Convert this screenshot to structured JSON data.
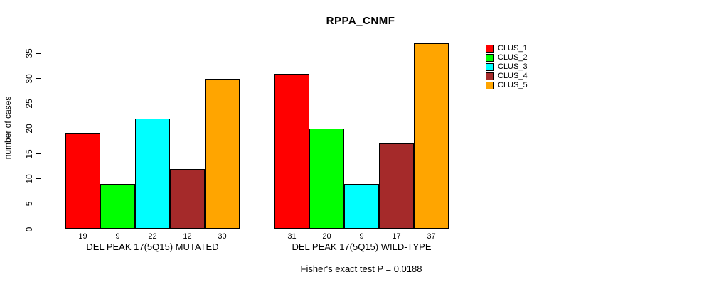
{
  "title": "RPPA_CNMF",
  "chart_data": {
    "type": "bar",
    "title": "RPPA_CNMF",
    "xlabel": "",
    "ylabel": "number of cases",
    "categories": [
      "DEL PEAK 17(5Q15) MUTATED",
      "DEL PEAK 17(5Q15) WILD-TYPE"
    ],
    "series": [
      {
        "name": "CLUS_1",
        "color": "#FF0000",
        "values": [
          19,
          31
        ]
      },
      {
        "name": "CLUS_2",
        "color": "#00FF00",
        "values": [
          9,
          20
        ]
      },
      {
        "name": "CLUS_3",
        "color": "#00FFFF",
        "values": [
          22,
          9
        ]
      },
      {
        "name": "CLUS_4",
        "color": "#A52A2A",
        "values": [
          12,
          17
        ]
      },
      {
        "name": "CLUS_5",
        "color": "#FFA500",
        "values": [
          30,
          37
        ]
      }
    ],
    "yticks": [
      0,
      5,
      10,
      15,
      20,
      25,
      30,
      35
    ],
    "ylim": [
      0,
      37
    ],
    "grid": false,
    "legend_position": "top-right",
    "bar_value_labels_shown": true,
    "annotation": "Fisher's exact test P = 0.0188",
    "axis_color": "#000000",
    "background_color": "#ffffff",
    "text_color": "#000000"
  }
}
